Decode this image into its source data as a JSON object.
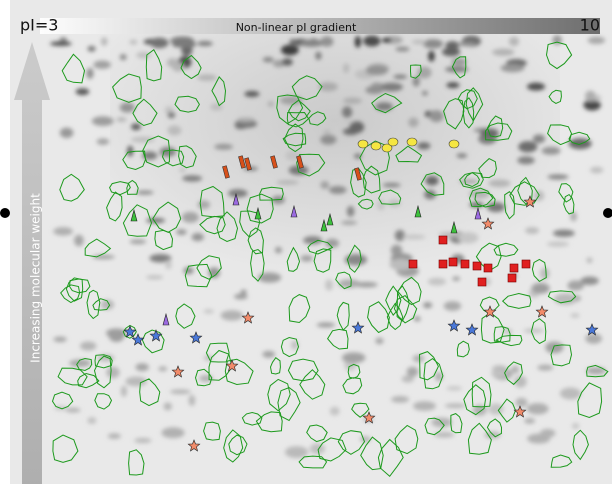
{
  "header": {
    "left": "pI=3",
    "title": "Non-linear pI gradient",
    "right": "10"
  },
  "axis": {
    "label": "Increasing molecular weight"
  }
}
